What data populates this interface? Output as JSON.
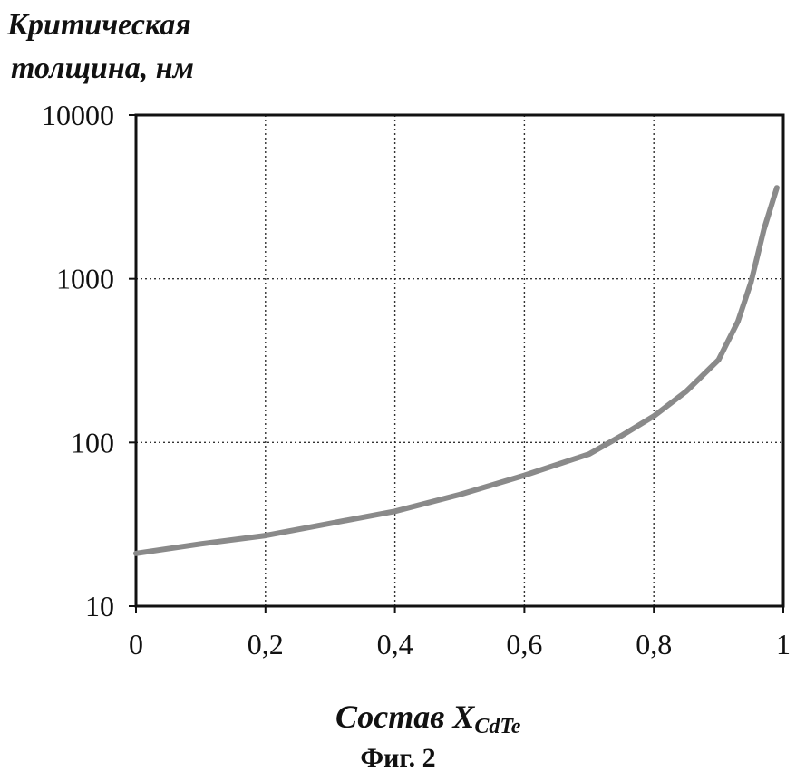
{
  "chart_data": {
    "type": "line",
    "ylabel_line1": "Критическая",
    "ylabel_line2": "толщина, нм",
    "xlabel_main": "Состав X",
    "xlabel_sub": "CdTe",
    "caption": "Фиг. 2",
    "xlim": [
      0,
      1
    ],
    "ylim": [
      10,
      10000
    ],
    "yscale": "log",
    "grid": true,
    "x_ticks": [
      "0",
      "0,2",
      "0,4",
      "0,6",
      "0,8",
      "1"
    ],
    "y_ticks": [
      "10",
      "100",
      "1000",
      "10000"
    ],
    "series": [
      {
        "x": [
          0,
          0.1,
          0.2,
          0.3,
          0.4,
          0.5,
          0.6,
          0.7,
          0.75,
          0.8,
          0.85,
          0.9,
          0.93,
          0.95,
          0.97,
          0.99
        ],
        "y": [
          21,
          24,
          27,
          32,
          38,
          48,
          63,
          85,
          110,
          145,
          205,
          320,
          550,
          950,
          2000,
          3600
        ]
      }
    ],
    "colors": {
      "line": "#8a8a8a",
      "axis": "#111111",
      "grid": "#333333"
    }
  }
}
